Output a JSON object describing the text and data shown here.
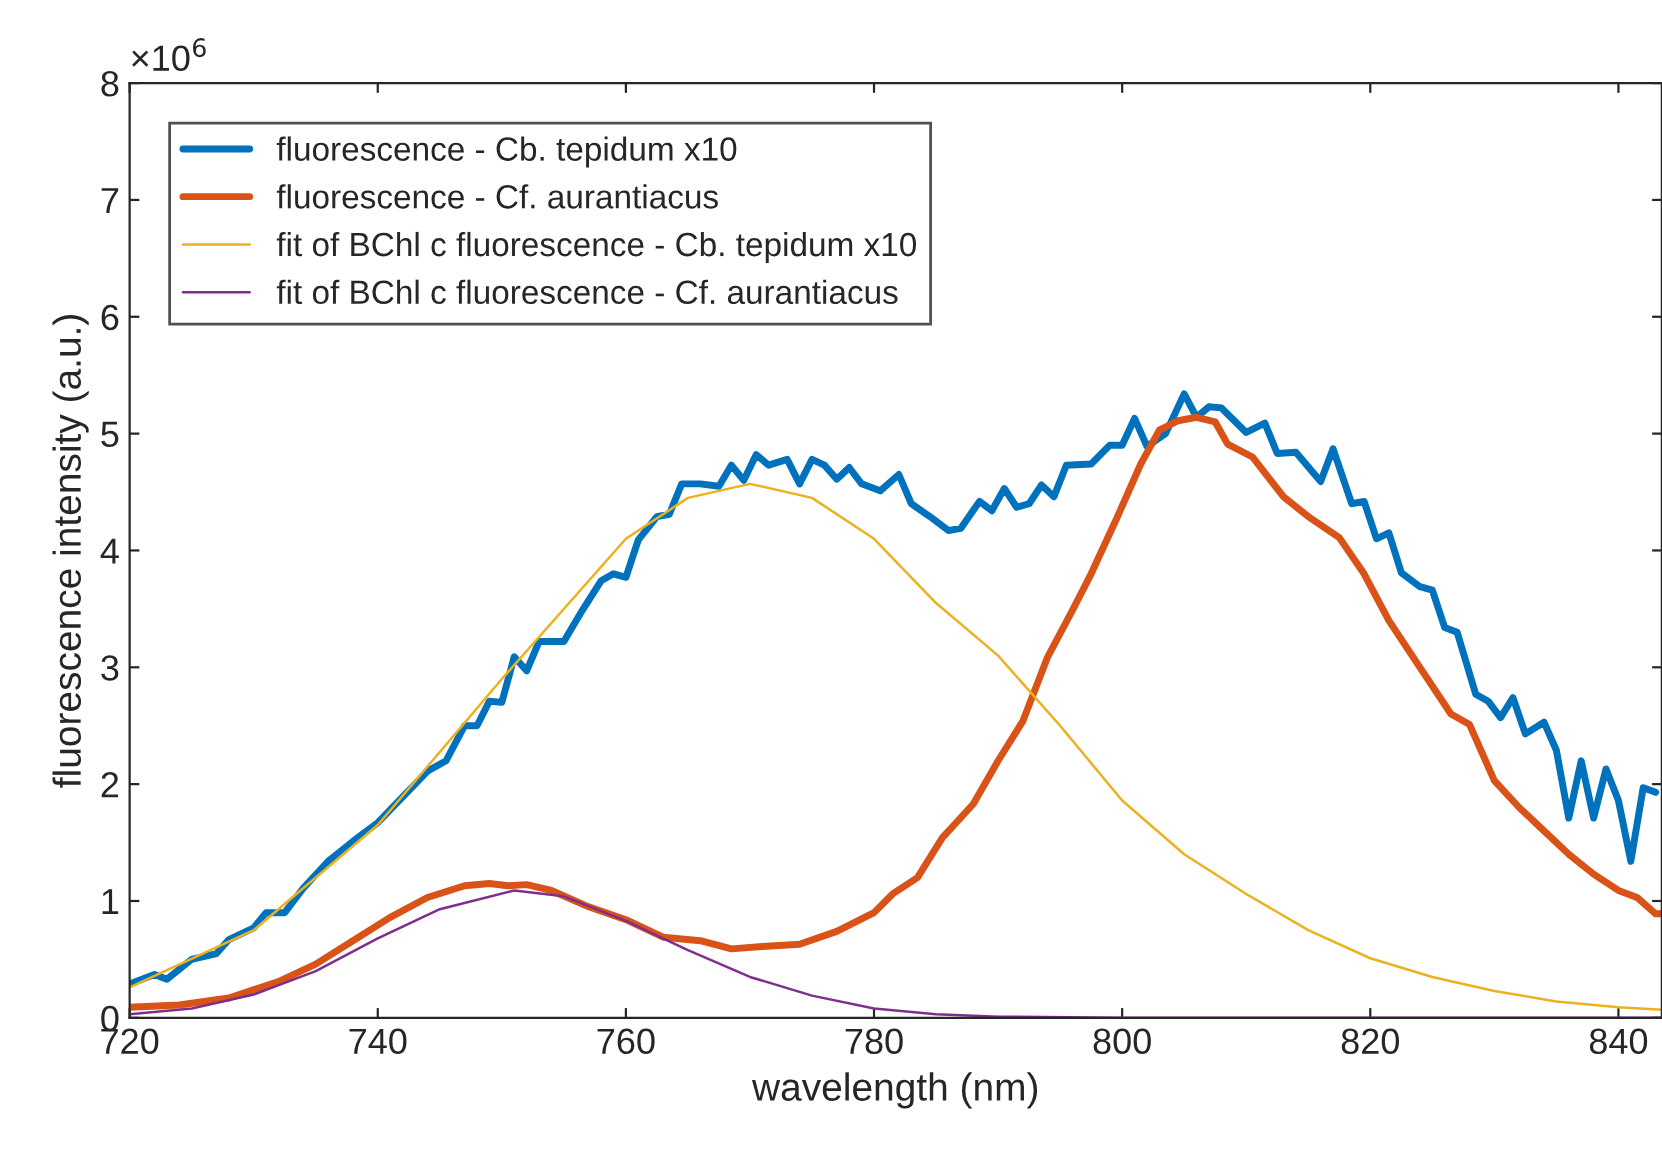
{
  "chart_data": {
    "type": "line",
    "xlabel": "wavelength (nm)",
    "ylabel": "fluorescence intensity (a.u.)",
    "annotations": [
      "×10$^{6}$"
    ],
    "xlim": [
      720,
      843.5
    ],
    "xticks": [
      720,
      740,
      760,
      780,
      800,
      820,
      840
    ],
    "ylim": [
      0,
      8
    ],
    "yticks": [
      0,
      1,
      2,
      3,
      4,
      5,
      6,
      7,
      8
    ],
    "grid": false,
    "legend": "top left",
    "series": [
      {
        "name": "fluorescence - Cb. tepidum x10",
        "color": "#0072bd",
        "x": [
          720,
          722,
          723,
          725,
          727,
          728,
          730,
          731,
          732.5,
          734,
          736,
          738,
          740,
          742,
          744,
          745.5,
          747,
          748,
          749,
          750,
          751,
          752,
          753,
          755,
          756.5,
          758,
          759,
          760,
          761,
          762.5,
          763.5,
          764.5,
          766,
          767.5,
          768.5,
          769.5,
          770.5,
          771.5,
          773,
          774,
          775,
          776,
          777,
          778,
          779,
          780.5,
          782,
          783,
          784.5,
          786,
          787,
          788.5,
          789.5,
          790.5,
          791.5,
          792.5,
          793.5,
          794.5,
          795.5,
          797.5,
          799,
          800,
          801,
          802,
          803.5,
          805,
          806,
          807,
          808,
          810,
          811.5,
          812.5,
          814,
          816,
          817,
          818.5,
          819.5,
          820.5,
          821.5,
          822.5,
          824,
          825,
          826,
          827,
          828.5,
          829.5,
          830.5,
          831.5,
          832.5,
          834,
          835,
          836,
          837,
          838,
          839,
          840,
          841,
          842,
          843
        ],
        "values": [
          0.29,
          0.37,
          0.33,
          0.5,
          0.55,
          0.67,
          0.77,
          0.9,
          0.9,
          1.11,
          1.34,
          1.51,
          1.67,
          1.89,
          2.11,
          2.2,
          2.5,
          2.5,
          2.71,
          2.7,
          3.09,
          2.97,
          3.22,
          3.22,
          3.49,
          3.74,
          3.8,
          3.77,
          4.09,
          4.29,
          4.31,
          4.57,
          4.57,
          4.55,
          4.73,
          4.6,
          4.82,
          4.73,
          4.78,
          4.57,
          4.78,
          4.73,
          4.61,
          4.71,
          4.57,
          4.51,
          4.65,
          4.4,
          4.29,
          4.17,
          4.19,
          4.42,
          4.34,
          4.53,
          4.37,
          4.4,
          4.56,
          4.46,
          4.73,
          4.74,
          4.9,
          4.9,
          5.13,
          4.89,
          5.0,
          5.34,
          5.14,
          5.23,
          5.22,
          5.01,
          5.09,
          4.83,
          4.84,
          4.59,
          4.87,
          4.4,
          4.42,
          4.1,
          4.15,
          3.81,
          3.69,
          3.66,
          3.34,
          3.3,
          2.77,
          2.71,
          2.57,
          2.74,
          2.43,
          2.53,
          2.29,
          1.71,
          2.2,
          1.71,
          2.13,
          1.86,
          1.34,
          1.97,
          1.93
        ]
      },
      {
        "name": "fluorescence - Cf. aurantiacus",
        "color": "#d95319",
        "x": [
          720,
          724,
          728,
          732,
          735,
          738,
          741,
          744,
          747,
          749,
          750.5,
          752,
          754,
          757,
          760,
          763,
          766,
          768.5,
          771,
          774,
          777,
          780,
          781.5,
          783.5,
          785.5,
          788,
          790,
          792,
          794,
          796,
          797.5,
          799.5,
          801.5,
          803,
          804.5,
          806,
          807.5,
          808.5,
          810.5,
          813,
          815,
          817.5,
          819.5,
          821.5,
          824,
          826.5,
          828,
          830,
          832,
          834,
          836,
          838,
          840,
          841.5,
          843,
          843.5
        ],
        "values": [
          0.09,
          0.11,
          0.17,
          0.31,
          0.46,
          0.66,
          0.86,
          1.03,
          1.13,
          1.15,
          1.13,
          1.14,
          1.09,
          0.95,
          0.84,
          0.69,
          0.66,
          0.59,
          0.61,
          0.63,
          0.74,
          0.9,
          1.06,
          1.2,
          1.54,
          1.83,
          2.2,
          2.54,
          3.09,
          3.49,
          3.8,
          4.26,
          4.74,
          5.03,
          5.11,
          5.14,
          5.1,
          4.91,
          4.8,
          4.46,
          4.29,
          4.11,
          3.8,
          3.4,
          3.0,
          2.6,
          2.51,
          2.03,
          1.8,
          1.6,
          1.4,
          1.23,
          1.09,
          1.03,
          0.89,
          0.89
        ]
      },
      {
        "name": "fit of BChl c fluorescence - Cb. tepidum x10",
        "color": "#edb120",
        "x": [
          720,
          730,
          740,
          750,
          760,
          765,
          770,
          775,
          780,
          785,
          790,
          792,
          795,
          800,
          805,
          810,
          815,
          820,
          825,
          830,
          835,
          840,
          843.5
        ],
        "values": [
          0.26,
          0.75,
          1.65,
          2.9,
          4.1,
          4.45,
          4.57,
          4.45,
          4.1,
          3.55,
          3.1,
          2.86,
          2.5,
          1.86,
          1.4,
          1.06,
          0.75,
          0.51,
          0.35,
          0.23,
          0.14,
          0.09,
          0.07
        ]
      },
      {
        "name": "fit of BChl c fluorescence - Cf. aurantiacus",
        "color": "#7e2f8e",
        "x": [
          720,
          725,
          730,
          735,
          740,
          745,
          751,
          755,
          760,
          765,
          770,
          775,
          780,
          785,
          790,
          800,
          843.5
        ],
        "values": [
          0.03,
          0.08,
          0.2,
          0.4,
          0.68,
          0.93,
          1.09,
          1.04,
          0.83,
          0.58,
          0.35,
          0.19,
          0.08,
          0.03,
          0.01,
          0,
          0
        ]
      }
    ]
  }
}
